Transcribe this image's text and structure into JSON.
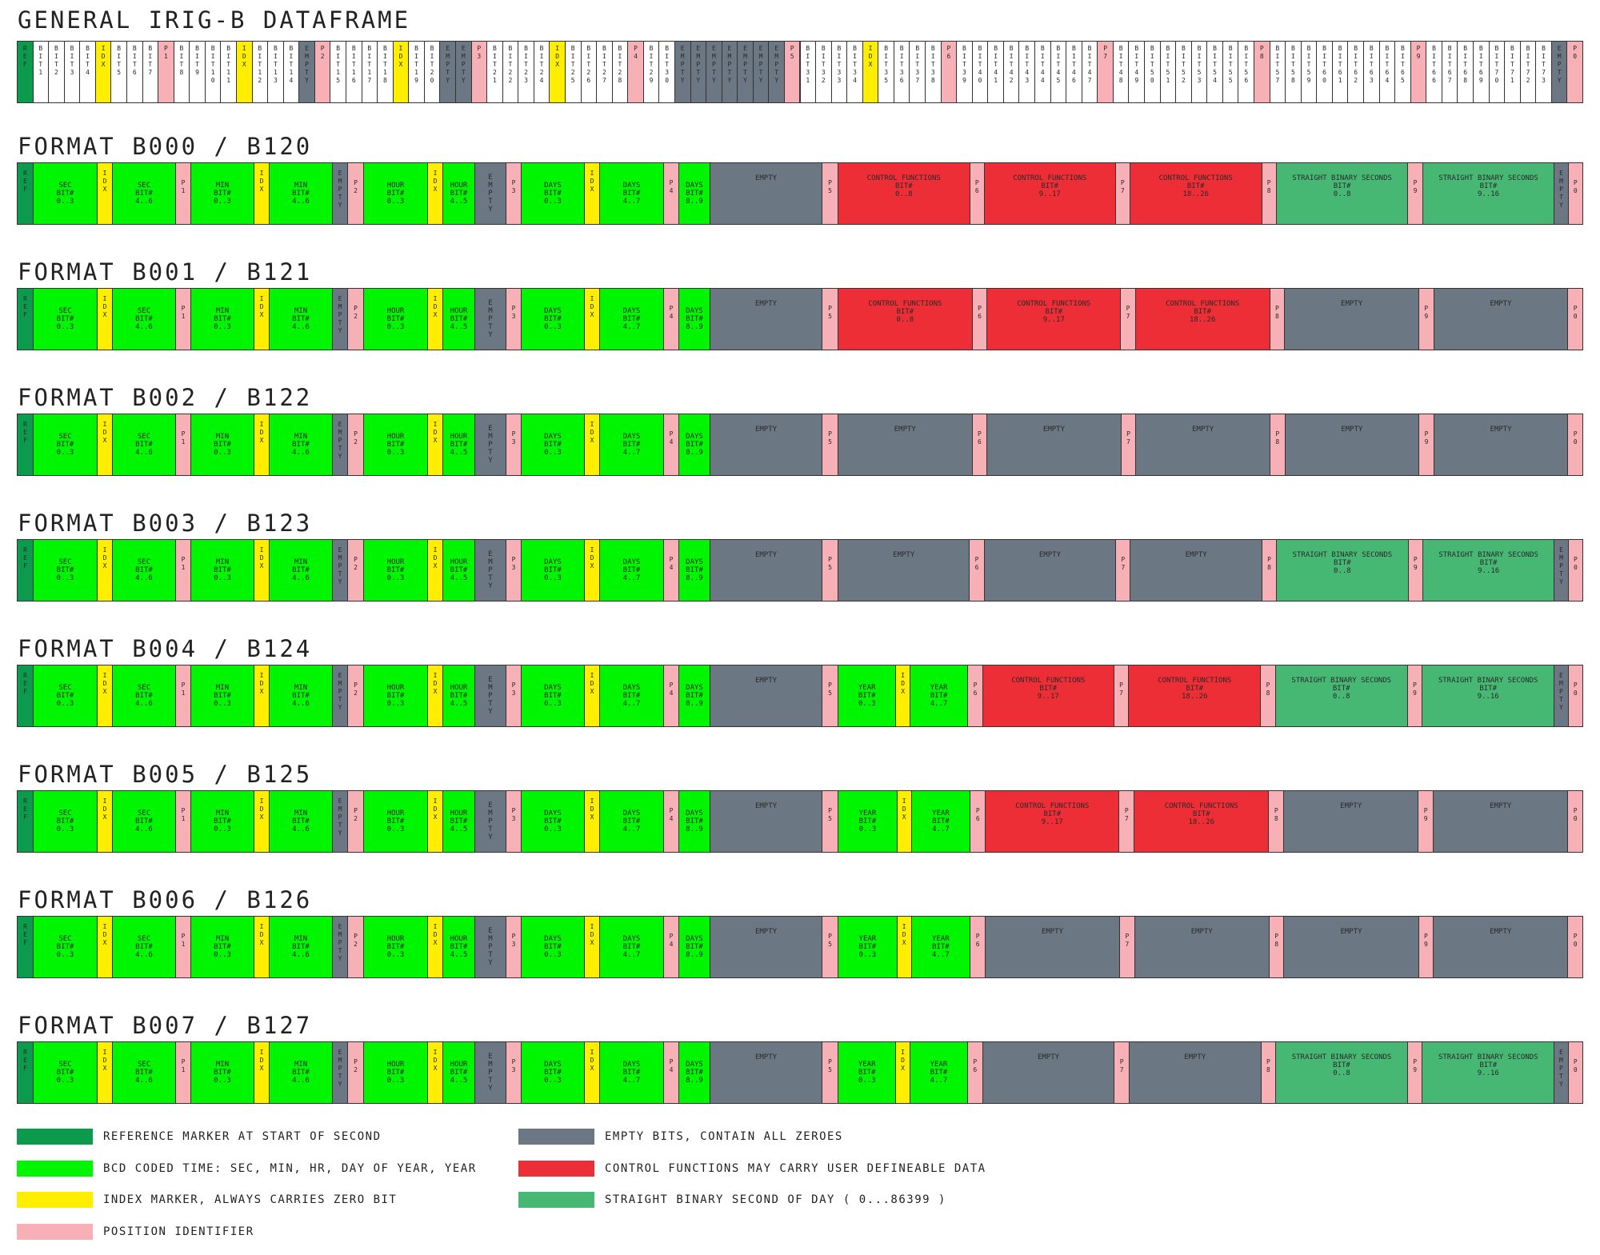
{
  "colors": {
    "ref": "#0c9a4c",
    "bcd": "#00f500",
    "idx": "#ffee00",
    "pos": "#f7b1b6",
    "empty": "#6b7782",
    "ctrl": "#ee2e36",
    "sbs": "#46b874",
    "blank": "#ffffff"
  },
  "general": {
    "title": "GENERAL IRIG-B DATAFRAME",
    "cells": [
      {
        "t": "ref",
        "l": "R\nE\nF"
      },
      {
        "t": "blank",
        "l": "B\nI\nT\n1"
      },
      {
        "t": "blank",
        "l": "B\nI\nT\n2"
      },
      {
        "t": "blank",
        "l": "B\nI\nT\n3"
      },
      {
        "t": "blank",
        "l": "B\nI\nT\n4"
      },
      {
        "t": "idx",
        "l": "I\nD\nX"
      },
      {
        "t": "blank",
        "l": "B\nI\nT\n5"
      },
      {
        "t": "blank",
        "l": "B\nI\nT\n6"
      },
      {
        "t": "blank",
        "l": "B\nI\nT\n7"
      },
      {
        "t": "pos",
        "l": "P\n1"
      },
      {
        "t": "blank",
        "l": "B\nI\nT\n8"
      },
      {
        "t": "blank",
        "l": "B\nI\nT\n9"
      },
      {
        "t": "blank",
        "l": "B\nI\nT\n1\n0"
      },
      {
        "t": "blank",
        "l": "B\nI\nT\n1\n1"
      },
      {
        "t": "idx",
        "l": "I\nD\nX"
      },
      {
        "t": "blank",
        "l": "B\nI\nT\n1\n2"
      },
      {
        "t": "blank",
        "l": "B\nI\nT\n1\n3"
      },
      {
        "t": "blank",
        "l": "B\nI\nT\n1\n4"
      },
      {
        "t": "empty",
        "l": "E\nM\nP\nT\nY"
      },
      {
        "t": "pos",
        "l": "P\n2"
      },
      {
        "t": "blank",
        "l": "B\nI\nT\n1\n5"
      },
      {
        "t": "blank",
        "l": "B\nI\nT\n1\n6"
      },
      {
        "t": "blank",
        "l": "B\nI\nT\n1\n7"
      },
      {
        "t": "blank",
        "l": "B\nI\nT\n1\n8"
      },
      {
        "t": "idx",
        "l": "I\nD\nX"
      },
      {
        "t": "blank",
        "l": "B\nI\nT\n1\n9"
      },
      {
        "t": "blank",
        "l": "B\nI\nT\n2\n0"
      },
      {
        "t": "empty",
        "l": "E\nM\nP\nT\nY"
      },
      {
        "t": "empty",
        "l": "E\nM\nP\nT\nY"
      },
      {
        "t": "pos",
        "l": "P\n3"
      },
      {
        "t": "blank",
        "l": "B\nI\nT\n2\n1"
      },
      {
        "t": "blank",
        "l": "B\nI\nT\n2\n2"
      },
      {
        "t": "blank",
        "l": "B\nI\nT\n2\n3"
      },
      {
        "t": "blank",
        "l": "B\nI\nT\n2\n4"
      },
      {
        "t": "idx",
        "l": "I\nD\nX"
      },
      {
        "t": "blank",
        "l": "B\nI\nT\n2\n5"
      },
      {
        "t": "blank",
        "l": "B\nI\nT\n2\n6"
      },
      {
        "t": "blank",
        "l": "B\nI\nT\n2\n7"
      },
      {
        "t": "blank",
        "l": "B\nI\nT\n2\n8"
      },
      {
        "t": "pos",
        "l": "P\n4"
      },
      {
        "t": "blank",
        "l": "B\nI\nT\n2\n9"
      },
      {
        "t": "blank",
        "l": "B\nI\nT\n3\n0"
      },
      {
        "t": "empty",
        "l": "E\nM\nP\nT\nY"
      },
      {
        "t": "empty",
        "l": "E\nM\nP\nT\nY"
      },
      {
        "t": "empty",
        "l": "E\nM\nP\nT\nY"
      },
      {
        "t": "empty",
        "l": "E\nM\nP\nT\nY"
      },
      {
        "t": "empty",
        "l": "E\nM\nP\nT\nY"
      },
      {
        "t": "empty",
        "l": "E\nM\nP\nT\nY"
      },
      {
        "t": "empty",
        "l": "E\nM\nP\nT\nY"
      },
      {
        "t": "pos",
        "l": "P\n5"
      },
      {
        "t": "blank",
        "l": "B\nI\nT\n3\n1"
      },
      {
        "t": "blank",
        "l": "B\nI\nT\n3\n2"
      },
      {
        "t": "blank",
        "l": "B\nI\nT\n3\n3"
      },
      {
        "t": "blank",
        "l": "B\nI\nT\n3\n4"
      },
      {
        "t": "idx",
        "l": "I\nD\nX"
      },
      {
        "t": "blank",
        "l": "B\nI\nT\n3\n5"
      },
      {
        "t": "blank",
        "l": "B\nI\nT\n3\n6"
      },
      {
        "t": "blank",
        "l": "B\nI\nT\n3\n7"
      },
      {
        "t": "blank",
        "l": "B\nI\nT\n3\n8"
      },
      {
        "t": "pos",
        "l": "P\n6"
      },
      {
        "t": "blank",
        "l": "B\nI\nT\n3\n9"
      },
      {
        "t": "blank",
        "l": "B\nI\nT\n4\n0"
      },
      {
        "t": "blank",
        "l": "B\nI\nT\n4\n1"
      },
      {
        "t": "blank",
        "l": "B\nI\nT\n4\n2"
      },
      {
        "t": "blank",
        "l": "B\nI\nT\n4\n3"
      },
      {
        "t": "blank",
        "l": "B\nI\nT\n4\n4"
      },
      {
        "t": "blank",
        "l": "B\nI\nT\n4\n5"
      },
      {
        "t": "blank",
        "l": "B\nI\nT\n4\n6"
      },
      {
        "t": "blank",
        "l": "B\nI\nT\n4\n7"
      },
      {
        "t": "pos",
        "l": "P\n7"
      },
      {
        "t": "blank",
        "l": "B\nI\nT\n4\n8"
      },
      {
        "t": "blank",
        "l": "B\nI\nT\n4\n9"
      },
      {
        "t": "blank",
        "l": "B\nI\nT\n5\n0"
      },
      {
        "t": "blank",
        "l": "B\nI\nT\n5\n1"
      },
      {
        "t": "blank",
        "l": "B\nI\nT\n5\n2"
      },
      {
        "t": "blank",
        "l": "B\nI\nT\n5\n3"
      },
      {
        "t": "blank",
        "l": "B\nI\nT\n5\n4"
      },
      {
        "t": "blank",
        "l": "B\nI\nT\n5\n5"
      },
      {
        "t": "blank",
        "l": "B\nI\nT\n5\n6"
      },
      {
        "t": "pos",
        "l": "P\n8"
      },
      {
        "t": "blank",
        "l": "B\nI\nT\n5\n7"
      },
      {
        "t": "blank",
        "l": "B\nI\nT\n5\n8"
      },
      {
        "t": "blank",
        "l": "B\nI\nT\n5\n9"
      },
      {
        "t": "blank",
        "l": "B\nI\nT\n6\n0"
      },
      {
        "t": "blank",
        "l": "B\nI\nT\n6\n1"
      },
      {
        "t": "blank",
        "l": "B\nI\nT\n6\n2"
      },
      {
        "t": "blank",
        "l": "B\nI\nT\n6\n3"
      },
      {
        "t": "blank",
        "l": "B\nI\nT\n6\n4"
      },
      {
        "t": "blank",
        "l": "B\nI\nT\n6\n5"
      },
      {
        "t": "pos",
        "l": "P\n9"
      },
      {
        "t": "blank",
        "l": "B\nI\nT\n6\n6"
      },
      {
        "t": "blank",
        "l": "B\nI\nT\n6\n7"
      },
      {
        "t": "blank",
        "l": "B\nI\nT\n6\n8"
      },
      {
        "t": "blank",
        "l": "B\nI\nT\n6\n9"
      },
      {
        "t": "blank",
        "l": "B\nI\nT\n7\n0"
      },
      {
        "t": "blank",
        "l": "B\nI\nT\n7\n1"
      },
      {
        "t": "blank",
        "l": "B\nI\nT\n7\n2"
      },
      {
        "t": "blank",
        "l": "B\nI\nT\n7\n3"
      },
      {
        "t": "empty",
        "l": "E\nM\nP\nT\nY"
      },
      {
        "t": "pos",
        "l": "P\n0"
      }
    ]
  },
  "formats": [
    {
      "title": "FORMAT B000 / B120",
      "variant": "A"
    },
    {
      "title": "FORMAT B001 / B121",
      "variant": "B"
    },
    {
      "title": "FORMAT B002 / B122",
      "variant": "C"
    },
    {
      "title": "FORMAT B003 / B123",
      "variant": "D"
    },
    {
      "title": "FORMAT B004 / B124",
      "variant": "E"
    },
    {
      "title": "FORMAT B005 / B125",
      "variant": "F"
    },
    {
      "title": "FORMAT B006 / B126",
      "variant": "G"
    },
    {
      "title": "FORMAT B007 / B127",
      "variant": "H"
    }
  ],
  "common_cells": [
    {
      "t": "ref",
      "l": "R\nE\nF"
    },
    {
      "t": "bcd",
      "l": "SEC\nBIT#\n0..3"
    },
    {
      "t": "idx",
      "l": "I\nD\nX"
    },
    {
      "t": "bcd",
      "l": "SEC\nBIT#\n4..6"
    },
    {
      "t": "pos",
      "l": "P\n1"
    },
    {
      "t": "bcd",
      "l": "MIN\nBIT#\n0..3"
    },
    {
      "t": "idx",
      "l": "I\nD\nX"
    },
    {
      "t": "bcd",
      "l": "MIN\nBIT#\n4..6"
    },
    {
      "t": "empty",
      "l": "E\nM\nP\nT\nY"
    },
    {
      "t": "pos",
      "l": "P\n2"
    },
    {
      "t": "bcd",
      "l": "HOUR\nBIT#\n0..3"
    },
    {
      "t": "idx",
      "l": "I\nD\nX"
    },
    {
      "t": "bcd",
      "l": "HOUR\nBIT#\n4..5"
    },
    {
      "t": "empty",
      "l": "E\nM\nP\nT\nY"
    },
    {
      "t": "pos",
      "l": "P\n3"
    },
    {
      "t": "bcd",
      "l": "DAYS\nBIT#\n0..3"
    },
    {
      "t": "idx",
      "l": "I\nD\nX"
    },
    {
      "t": "bcd",
      "l": "DAYS\nBIT#\n4..7"
    },
    {
      "t": "pos",
      "l": "P\n4"
    },
    {
      "t": "bcd",
      "l": "DAYS\nBIT#\n8..9"
    },
    {
      "t": "empty",
      "l": "EMPTY",
      "top": true
    },
    {
      "t": "pos",
      "l": "P\n5"
    }
  ],
  "tails": {
    "ctrl_full": {
      "t": "ctrl",
      "l": "CONTROL FUNCTIONS\nBIT#\n0..8",
      "top": true
    },
    "ctrl_9": {
      "t": "ctrl",
      "l": "CONTROL FUNCTIONS\nBIT#\n9..17",
      "top": true
    },
    "ctrl_18": {
      "t": "ctrl",
      "l": "CONTROL FUNCTIONS\nBIT#\n18..26",
      "top": true
    },
    "sbs_0": {
      "t": "sbs",
      "l": "STRAIGHT BINARY SECONDS\nBIT#\n0..8",
      "top": true
    },
    "sbs_9": {
      "t": "sbs",
      "l": "STRAIGHT BINARY SECONDS\nBIT#\n9..16",
      "top": true
    },
    "empty_block": {
      "t": "empty",
      "l": "EMPTY",
      "top": true
    },
    "empty_narrow": {
      "t": "empty",
      "l": "E\nM\nP\nT\nY"
    },
    "year_0": {
      "t": "bcd",
      "l": "YEAR\nBIT#\n0..3"
    },
    "year_4": {
      "t": "bcd",
      "l": "YEAR\nBIT#\n4..7"
    },
    "idx": {
      "t": "idx",
      "l": "I\nD\nX"
    },
    "p6": {
      "t": "pos",
      "l": "P\n6"
    },
    "p7": {
      "t": "pos",
      "l": "P\n7"
    },
    "p8": {
      "t": "pos",
      "l": "P\n8"
    },
    "p9": {
      "t": "pos",
      "l": "P\n9"
    },
    "p0": {
      "t": "pos",
      "l": "P\n0"
    }
  },
  "legend": [
    {
      "color": "ref",
      "text": "REFERENCE MARKER AT START OF SECOND"
    },
    {
      "color": "bcd",
      "text": "BCD CODED TIME: SEC, MIN, HR, DAY OF YEAR, YEAR"
    },
    {
      "color": "idx",
      "text": "INDEX MARKER, ALWAYS CARRIES ZERO BIT"
    },
    {
      "color": "pos",
      "text": "POSITION IDENTIFIER"
    },
    {
      "color": "empty",
      "text": "EMPTY BITS, CONTAIN ALL ZEROES"
    },
    {
      "color": "ctrl",
      "text": "CONTROL FUNCTIONS MAY CARRY USER DEFINEABLE DATA"
    },
    {
      "color": "sbs",
      "text": "STRAIGHT BINARY SECOND OF DAY ( 0...86399 )"
    }
  ]
}
